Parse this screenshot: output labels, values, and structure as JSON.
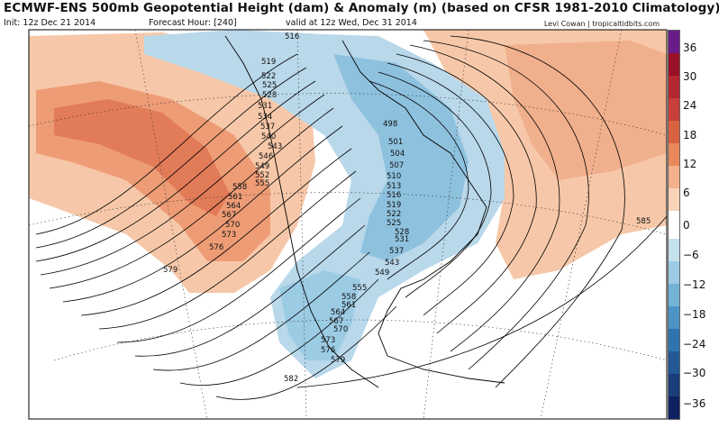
{
  "header": {
    "title": "ECMWF-ENS 500mb Geopotential Height (dam) & Anomaly (m) (based on CFSR 1981-2010 Climatology)",
    "init": "Init: 12z Dec 21 2014",
    "forecast_hour": "Forecast Hour: [240]",
    "valid": "valid at 12z Wed, Dec 31 2014",
    "credit": "Levi Cowan | tropicaltidbits.com"
  },
  "map": {
    "contour_labels": [
      "516",
      "519",
      "522",
      "525",
      "528",
      "531",
      "534",
      "537",
      "540",
      "543",
      "546",
      "549",
      "552",
      "555",
      "558",
      "561",
      "564",
      "567",
      "570",
      "573",
      "576",
      "579",
      "582",
      "585",
      "498",
      "501",
      "504",
      "507",
      "510",
      "513",
      "516",
      "519",
      "522",
      "525",
      "528",
      "531",
      "537",
      "543",
      "549",
      "555",
      "558",
      "561",
      "564",
      "567",
      "570",
      "573",
      "576",
      "579"
    ],
    "colors": {
      "ocean": "#ffffff",
      "land_line": "#000000",
      "contour": "#000000"
    }
  },
  "colorbar": {
    "ticks": [
      "36",
      "30",
      "24",
      "18",
      "12",
      "6",
      "0",
      "−6",
      "−12",
      "−18",
      "−24",
      "−30",
      "−36"
    ],
    "colors": [
      "#6a1b8a",
      "#9a1028",
      "#b42630",
      "#c7403a",
      "#d8623f",
      "#e8885c",
      "#f3b08a",
      "#f8d3b8",
      "#ffffff",
      "#c6e1ee",
      "#9ccbe4",
      "#74b2d6",
      "#4c94c5",
      "#2f74b0",
      "#235995",
      "#1a3d7a",
      "#0f2260"
    ]
  }
}
